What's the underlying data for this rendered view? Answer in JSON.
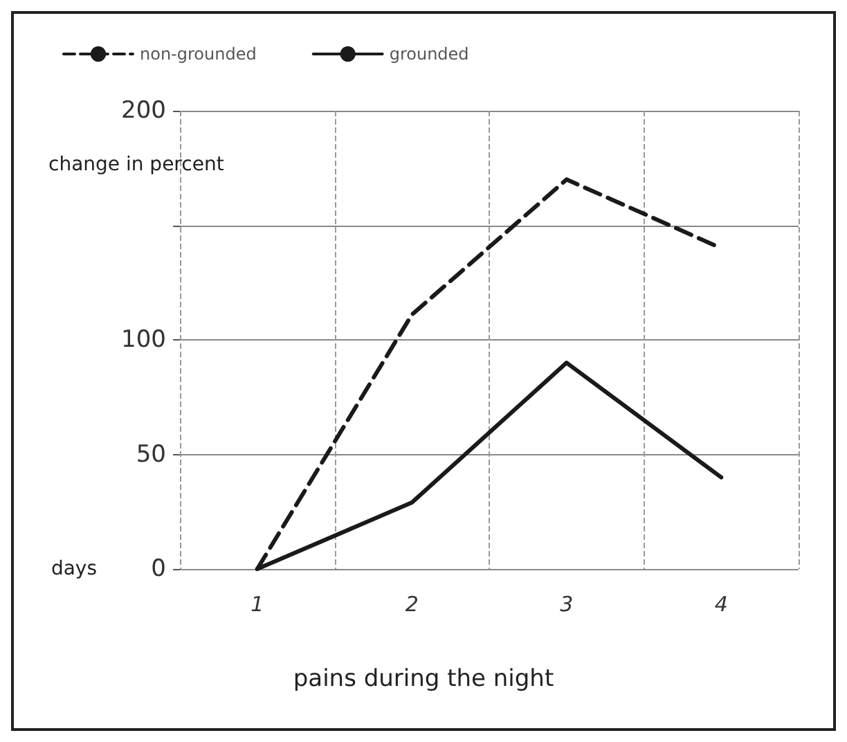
{
  "chart_data": {
    "type": "line",
    "title": "pains during the night",
    "xlabel": "days",
    "ylabel": "change in percent",
    "categories": [
      "1",
      "2",
      "3",
      "4"
    ],
    "series": [
      {
        "name": "non-grounded",
        "color": "#1a1a1a",
        "values": [
          0,
          111,
          170,
          140
        ],
        "line_style": "dashed"
      },
      {
        "name": "grounded",
        "color": "#1a1a1a",
        "values": [
          0,
          29,
          90,
          40
        ],
        "line_style": "solid"
      }
    ],
    "ylim": [
      0,
      200
    ],
    "yticks": [
      0,
      50,
      100,
      {
        "value": 150,
        "label": null
      },
      200
    ],
    "grid": true,
    "legend": "top left",
    "marker": "none"
  }
}
